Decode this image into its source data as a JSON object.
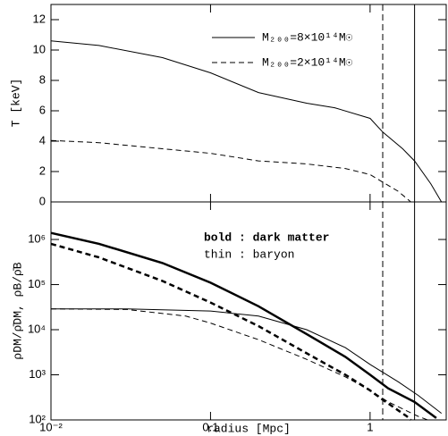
{
  "chart_data": [
    {
      "type": "line",
      "ylabel": "T [keV]",
      "xlog": true,
      "xlim": [
        0.01,
        3
      ],
      "ylim": [
        0,
        13
      ],
      "yticks": [
        0,
        2,
        4,
        6,
        8,
        10,
        12
      ],
      "legend": "upper right",
      "vlines": [
        {
          "x": 1.2,
          "dash": true
        },
        {
          "x": 1.9,
          "dash": false
        }
      ],
      "series": [
        {
          "name": "M₂₀₀=8×10¹⁴M☉",
          "color": "#000000",
          "dash": false,
          "width": 1,
          "x": [
            0.01,
            0.02,
            0.05,
            0.1,
            0.2,
            0.4,
            0.6,
            1,
            1.2,
            1.6,
            1.9,
            2.4,
            2.8
          ],
          "values": [
            10.6,
            10.3,
            9.5,
            8.5,
            7.2,
            6.5,
            6.2,
            5.5,
            4.6,
            3.5,
            2.7,
            1.2,
            0
          ]
        },
        {
          "name": "M₂₀₀=2×10¹⁴M☉",
          "color": "#000000",
          "dash": true,
          "width": 1,
          "x": [
            0.01,
            0.02,
            0.05,
            0.1,
            0.2,
            0.4,
            0.7,
            1,
            1.2,
            1.5,
            1.8
          ],
          "values": [
            4.05,
            3.9,
            3.5,
            3.2,
            2.7,
            2.5,
            2.2,
            1.8,
            1.3,
            0.7,
            0
          ]
        }
      ]
    },
    {
      "type": "line",
      "xlabel": "radius [Mpc]",
      "ylabel": "ρDM/ρ̄DM, ρB/ρ̄B",
      "xlog": true,
      "ylog": true,
      "xlim": [
        0.01,
        3
      ],
      "ylim": [
        100,
        6800000
      ],
      "xticks": [
        {
          "value": 0.01,
          "label": "10⁻²"
        },
        0.1,
        1
      ],
      "yticks": [
        {
          "value": 100,
          "label": "10²"
        },
        {
          "value": 1000,
          "label": "10³"
        },
        {
          "value": 10000,
          "label": "10⁴"
        },
        {
          "value": 100000,
          "label": "10⁵"
        },
        {
          "value": 1000000,
          "label": "10⁶"
        }
      ],
      "annotations": [
        "bold : dark matter",
        "thin : baryon"
      ],
      "vlines": [
        {
          "x": 1.2,
          "dash": true
        },
        {
          "x": 1.9,
          "dash": false
        }
      ],
      "series": [
        {
          "color": "#000000",
          "dash": false,
          "width": 2.5,
          "x": [
            0.01,
            0.02,
            0.05,
            0.1,
            0.2,
            0.4,
            0.7,
            1,
            1.3,
            1.9,
            2.6
          ],
          "values": [
            1400000,
            800000,
            300000,
            110000,
            33000,
            8000,
            2500,
            1000,
            500,
            250,
            110
          ]
        },
        {
          "color": "#000000",
          "dash": true,
          "width": 2.5,
          "x": [
            0.01,
            0.02,
            0.05,
            0.1,
            0.2,
            0.4,
            0.7,
            1,
            1.2,
            1.7,
            1.8
          ],
          "values": [
            800000,
            400000,
            120000,
            40000,
            12000,
            3000,
            1000,
            450,
            280,
            120,
            100
          ]
        },
        {
          "color": "#000000",
          "dash": false,
          "width": 1,
          "x": [
            0.01,
            0.03,
            0.1,
            0.2,
            0.4,
            0.7,
            1,
            1.5,
            2,
            2.8
          ],
          "values": [
            29000,
            29000,
            26000,
            20000,
            10000,
            4000,
            1700,
            700,
            350,
            140
          ]
        },
        {
          "color": "#000000",
          "dash": true,
          "width": 1,
          "x": [
            0.01,
            0.03,
            0.07,
            0.1,
            0.2,
            0.4,
            0.7,
            1,
            1.3,
            2,
            2.3
          ],
          "values": [
            29000,
            28000,
            20000,
            14000,
            6000,
            2200,
            900,
            450,
            250,
            120,
            100
          ]
        }
      ]
    }
  ]
}
